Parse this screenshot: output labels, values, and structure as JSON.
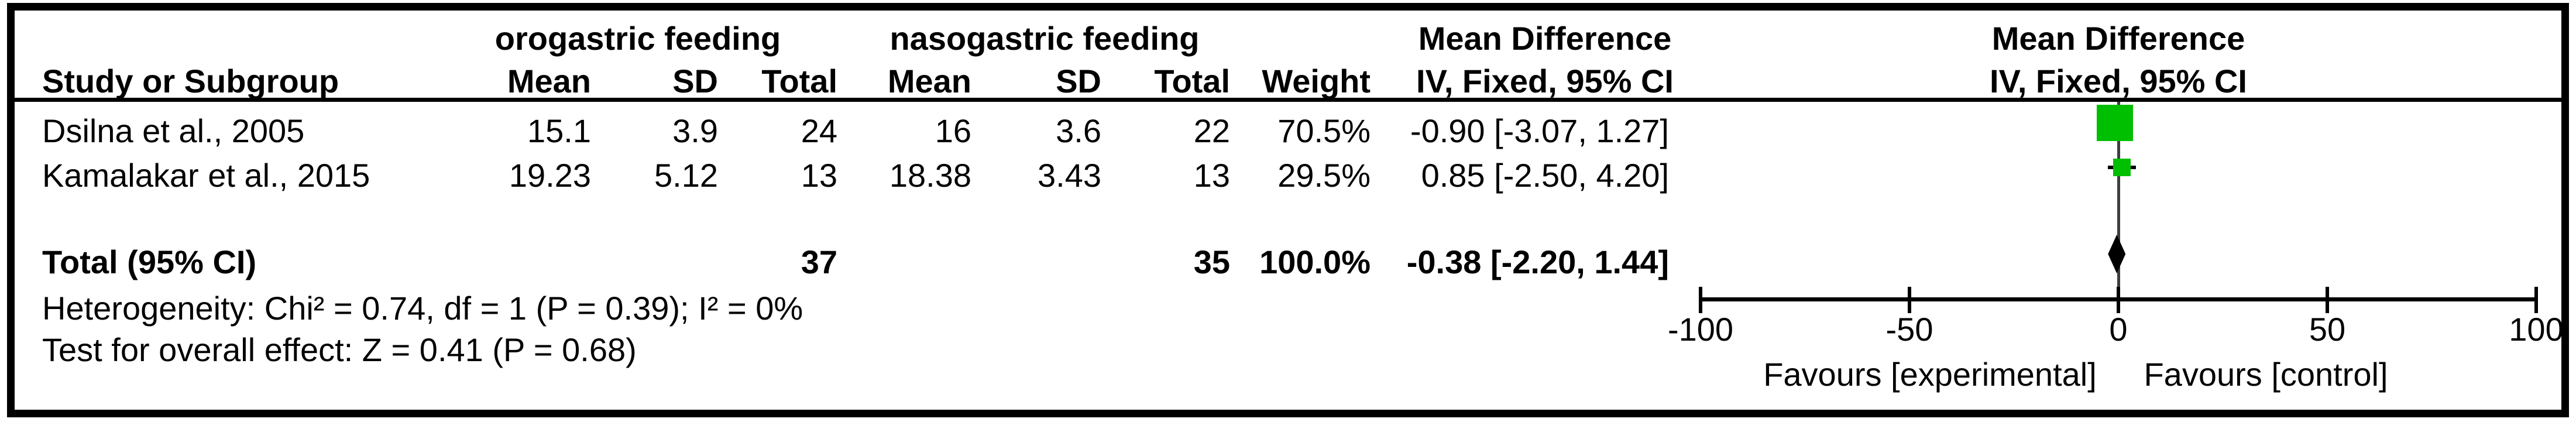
{
  "chart_data": {
    "type": "forest",
    "columns": {
      "study": "Study or Subgroup",
      "group1": "orogastric feeding",
      "group2": "nasogastric feeding",
      "mean": "Mean",
      "sd": "SD",
      "total": "Total",
      "weight": "Weight",
      "effect_title": "Mean Difference",
      "effect_method": "IV, Fixed, 95% CI"
    },
    "studies": [
      {
        "label": "Dsilna et al., 2005",
        "mean1": "15.1",
        "sd1": "3.9",
        "total1": "24",
        "mean2": "16",
        "sd2": "3.6",
        "total2": "22",
        "weight": "70.5%",
        "ci_text": "-0.90 [-3.07, 1.27]",
        "md": -0.9,
        "ci_low": -3.07,
        "ci_high": 1.27,
        "weight_pct": 70.5
      },
      {
        "label": "Kamalakar et al., 2015",
        "mean1": "19.23",
        "sd1": "5.12",
        "total1": "13",
        "mean2": "18.38",
        "sd2": "3.43",
        "total2": "13",
        "weight": "29.5%",
        "ci_text": "0.85 [-2.50, 4.20]",
        "md": 0.85,
        "ci_low": -2.5,
        "ci_high": 4.2,
        "weight_pct": 29.5
      }
    ],
    "total": {
      "label": "Total (95% CI)",
      "total1": "37",
      "total2": "35",
      "weight": "100.0%",
      "ci_text": "-0.38 [-2.20, 1.44]",
      "md": -0.38,
      "ci_low": -2.2,
      "ci_high": 1.44
    },
    "footnotes": {
      "heterogeneity": "Heterogeneity: Chi² = 0.74, df = 1 (P = 0.39); I² = 0%",
      "overall_effect": "Test for overall effect: Z = 0.41 (P = 0.68)"
    },
    "axis": {
      "min": -100,
      "max": 100,
      "ticks": [
        -100,
        -50,
        0,
        50,
        100
      ]
    },
    "favours": {
      "left": "Favours [experimental]",
      "right": "Favours [control]"
    },
    "colors": {
      "marker_green": "#00be00",
      "line_black": "#000000",
      "zero_line_gray": "#3d3d3d"
    }
  }
}
